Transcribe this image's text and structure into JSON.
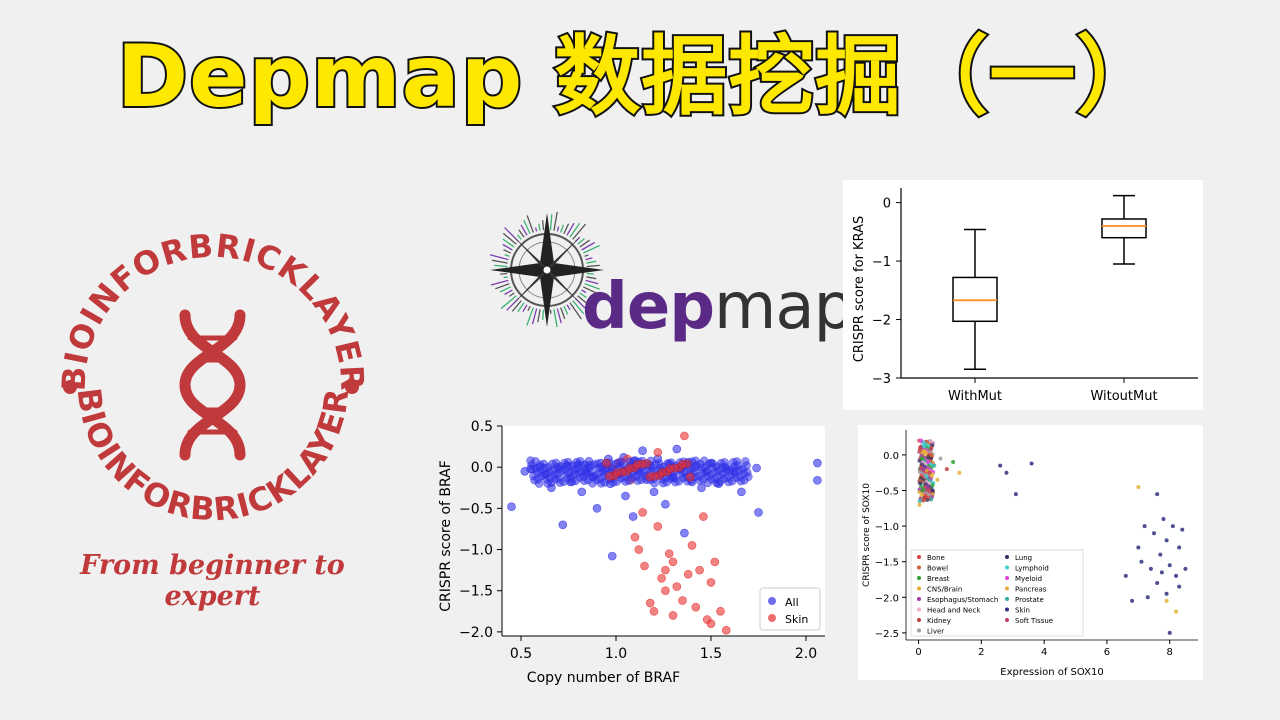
{
  "title": "Depmap 数据挖掘（一）",
  "badge": {
    "top_text": "BIOINFORBRICKLAYER",
    "bottom_text": "BIOINFORBRICKLAYER",
    "tagline": "From beginner to expert",
    "color": "#c0393b"
  },
  "depmap_logo": {
    "part1": "dep",
    "part2": "map",
    "icon": "compass-star-icon"
  },
  "chart_data": [
    {
      "type": "box",
      "ylabel": "CRISPR score for KRAS",
      "categories": [
        "WithMut",
        "WitoutMut"
      ],
      "ylim": [
        -3,
        0.25
      ],
      "yticks": [
        "0",
        "−1",
        "−2",
        "−3"
      ],
      "boxes": [
        {
          "whisker_low": -2.85,
          "q1": -2.03,
          "median": -1.67,
          "q3": -1.28,
          "whisker_high": -0.46
        },
        {
          "whisker_low": -1.05,
          "q1": -0.6,
          "median": -0.4,
          "q3": -0.28,
          "whisker_high": 0.12
        }
      ]
    },
    {
      "type": "scatter",
      "xlabel": "Copy number of BRAF",
      "ylabel": "CRISPR score of BRAF",
      "xlim": [
        0.4,
        2.1
      ],
      "ylim": [
        -2.05,
        0.5
      ],
      "xticks": [
        "0.5",
        "1.0",
        "1.5",
        "2.0"
      ],
      "yticks": [
        "0.5",
        "0.0",
        "−0.5",
        "−1.0",
        "−1.5",
        "−2.0"
      ],
      "legend": {
        "position": "bottom-right",
        "items": [
          "All",
          "Skin"
        ]
      },
      "series": [
        {
          "name": "All",
          "color": "#3030e8",
          "points": [
            [
              0.45,
              -0.48
            ],
            [
              0.52,
              -0.05
            ],
            [
              0.55,
              -0.02
            ],
            [
              0.6,
              0.0
            ],
            [
              0.63,
              -0.08
            ],
            [
              0.66,
              -0.25
            ],
            [
              0.7,
              -0.02
            ],
            [
              0.72,
              -0.7
            ],
            [
              0.74,
              0.02
            ],
            [
              0.76,
              -0.18
            ],
            [
              0.78,
              -0.08
            ],
            [
              0.8,
              0.03
            ],
            [
              0.82,
              -0.3
            ],
            [
              0.84,
              -0.06
            ],
            [
              0.86,
              0.02
            ],
            [
              0.88,
              -0.12
            ],
            [
              0.9,
              -0.5
            ],
            [
              0.92,
              0.05
            ],
            [
              0.94,
              -0.02
            ],
            [
              0.96,
              0.1
            ],
            [
              0.97,
              -0.2
            ],
            [
              0.98,
              -1.08
            ],
            [
              1.0,
              0.04
            ],
            [
              1.02,
              -0.08
            ],
            [
              1.04,
              0.12
            ],
            [
              1.05,
              -0.35
            ],
            [
              1.07,
              0.0
            ],
            [
              1.09,
              -0.6
            ],
            [
              1.1,
              0.08
            ],
            [
              1.12,
              -0.05
            ],
            [
              1.14,
              0.2
            ],
            [
              1.16,
              -0.15
            ],
            [
              1.18,
              0.02
            ],
            [
              1.2,
              -0.3
            ],
            [
              1.22,
              0.1
            ],
            [
              1.24,
              -0.05
            ],
            [
              1.26,
              -0.45
            ],
            [
              1.28,
              0.04
            ],
            [
              1.3,
              -0.12
            ],
            [
              1.32,
              0.22
            ],
            [
              1.34,
              -0.02
            ],
            [
              1.36,
              -0.8
            ],
            [
              1.38,
              0.06
            ],
            [
              1.4,
              -0.18
            ],
            [
              1.42,
              0.0
            ],
            [
              1.45,
              -0.25
            ],
            [
              1.48,
              -0.05
            ],
            [
              1.5,
              0.05
            ],
            [
              1.54,
              -0.2
            ],
            [
              1.58,
              -0.02
            ],
            [
              1.62,
              -0.05
            ],
            [
              1.66,
              -0.3
            ],
            [
              1.74,
              -0.01
            ],
            [
              1.75,
              -0.55
            ],
            [
              2.06,
              0.05
            ],
            [
              2.06,
              -0.16
            ]
          ]
        },
        {
          "name": "Skin",
          "color": "#e83030",
          "points": [
            [
              0.98,
              -0.02
            ],
            [
              1.02,
              0.06
            ],
            [
              1.08,
              -0.15
            ],
            [
              1.1,
              -0.85
            ],
            [
              1.12,
              -1.0
            ],
            [
              1.15,
              -1.2
            ],
            [
              1.18,
              -1.65
            ],
            [
              1.2,
              -1.75
            ],
            [
              1.22,
              -0.72
            ],
            [
              1.24,
              -1.35
            ],
            [
              1.26,
              -1.5
            ],
            [
              1.28,
              -1.05
            ],
            [
              1.3,
              -1.15
            ],
            [
              1.32,
              -1.45
            ],
            [
              1.35,
              -1.62
            ],
            [
              1.38,
              -1.3
            ],
            [
              1.4,
              -0.95
            ],
            [
              1.42,
              -1.7
            ],
            [
              1.44,
              -1.25
            ],
            [
              1.46,
              -0.6
            ],
            [
              1.48,
              -1.85
            ],
            [
              1.5,
              -1.4
            ],
            [
              1.52,
              -1.15
            ],
            [
              1.55,
              -1.75
            ],
            [
              1.58,
              -1.98
            ],
            [
              1.5,
              -1.9
            ],
            [
              1.3,
              -1.8
            ],
            [
              1.26,
              -1.25
            ],
            [
              1.14,
              -0.55
            ],
            [
              1.36,
              0.38
            ],
            [
              1.22,
              0.18
            ],
            [
              1.06,
              0.1
            ]
          ]
        }
      ]
    },
    {
      "type": "scatter",
      "xlabel": "Expression of SOX10",
      "ylabel": "CRISPR score of SOX10",
      "xlim": [
        -0.4,
        8.9
      ],
      "ylim": [
        -2.6,
        0.35
      ],
      "xticks": [
        "0",
        "2",
        "4",
        "6",
        "8"
      ],
      "yticks": [
        "0.0",
        "−0.5",
        "−1.0",
        "−1.5",
        "−2.0",
        "−2.5"
      ],
      "legend": {
        "position": "bottom-left",
        "items": [
          {
            "name": "Bone",
            "color": "#d94040"
          },
          {
            "name": "Bowel",
            "color": "#d06030"
          },
          {
            "name": "Breast",
            "color": "#30a030"
          },
          {
            "name": "CNS/Brain",
            "color": "#e0b030"
          },
          {
            "name": "Esophagus/Stomach",
            "color": "#a040a0"
          },
          {
            "name": "Head and Neck",
            "color": "#f0b0d0"
          },
          {
            "name": "Kidney",
            "color": "#c04040"
          },
          {
            "name": "Liver",
            "color": "#a0a0a0"
          },
          {
            "name": "Lung",
            "color": "#303060"
          },
          {
            "name": "Lymphoid",
            "color": "#40d0d0"
          },
          {
            "name": "Myeloid",
            "color": "#e040e0"
          },
          {
            "name": "Pancreas",
            "color": "#e0b040"
          },
          {
            "name": "Prostate",
            "color": "#30b0a0"
          },
          {
            "name": "Skin",
            "color": "#303080"
          },
          {
            "name": "Soft Tissue",
            "color": "#c04060"
          }
        ]
      },
      "points": [
        {
          "x": 0.05,
          "y": 0.1,
          "c": "#d94040"
        },
        {
          "x": 0.1,
          "y": -0.05,
          "c": "#30a030"
        },
        {
          "x": 0.15,
          "y": -0.2,
          "c": "#a040a0"
        },
        {
          "x": 0.2,
          "y": 0.05,
          "c": "#e0b030"
        },
        {
          "x": 0.25,
          "y": -0.3,
          "c": "#40d0d0"
        },
        {
          "x": 0.3,
          "y": -0.1,
          "c": "#e040e0"
        },
        {
          "x": 0.05,
          "y": -0.4,
          "c": "#303060"
        },
        {
          "x": 0.12,
          "y": -0.5,
          "c": "#30a030"
        },
        {
          "x": 0.35,
          "y": -0.25,
          "c": "#c04060"
        },
        {
          "x": 0.4,
          "y": 0.0,
          "c": "#d06030"
        },
        {
          "x": 0.5,
          "y": -0.15,
          "c": "#30b0a0"
        },
        {
          "x": 0.6,
          "y": -0.35,
          "c": "#e0b040"
        },
        {
          "x": 0.08,
          "y": 0.2,
          "c": "#e040e0"
        },
        {
          "x": 0.22,
          "y": -0.6,
          "c": "#d94040"
        },
        {
          "x": 0.7,
          "y": -0.05,
          "c": "#a0a0a0"
        },
        {
          "x": 0.9,
          "y": -0.2,
          "c": "#c04040"
        },
        {
          "x": 1.3,
          "y": -0.25,
          "c": "#e0b030"
        },
        {
          "x": 1.1,
          "y": -0.1,
          "c": "#30a030"
        },
        {
          "x": 0.03,
          "y": -0.7,
          "c": "#e0b030"
        },
        {
          "x": 0.45,
          "y": -0.5,
          "c": "#303060"
        },
        {
          "x": 0.18,
          "y": 0.12,
          "c": "#40d0d0"
        },
        {
          "x": 0.28,
          "y": -0.45,
          "c": "#a040a0"
        },
        {
          "x": 2.6,
          "y": -0.15,
          "c": "#303080"
        },
        {
          "x": 3.6,
          "y": -0.12,
          "c": "#303080"
        },
        {
          "x": 3.1,
          "y": -0.55,
          "c": "#303080"
        },
        {
          "x": 2.8,
          "y": -0.25,
          "c": "#303080"
        },
        {
          "x": 7.0,
          "y": -1.3,
          "c": "#303080"
        },
        {
          "x": 7.2,
          "y": -1.0,
          "c": "#303080"
        },
        {
          "x": 7.4,
          "y": -1.6,
          "c": "#303080"
        },
        {
          "x": 7.5,
          "y": -1.1,
          "c": "#303080"
        },
        {
          "x": 7.6,
          "y": -1.8,
          "c": "#303080"
        },
        {
          "x": 7.7,
          "y": -1.4,
          "c": "#303080"
        },
        {
          "x": 7.8,
          "y": -0.9,
          "c": "#303080"
        },
        {
          "x": 7.9,
          "y": -1.2,
          "c": "#303080"
        },
        {
          "x": 8.0,
          "y": -1.55,
          "c": "#303080"
        },
        {
          "x": 8.1,
          "y": -1.0,
          "c": "#303080"
        },
        {
          "x": 8.2,
          "y": -1.7,
          "c": "#303080"
        },
        {
          "x": 8.3,
          "y": -1.3,
          "c": "#303080"
        },
        {
          "x": 8.4,
          "y": -1.05,
          "c": "#303080"
        },
        {
          "x": 8.5,
          "y": -1.6,
          "c": "#303080"
        },
        {
          "x": 7.3,
          "y": -2.0,
          "c": "#303080"
        },
        {
          "x": 7.9,
          "y": -1.95,
          "c": "#303080"
        },
        {
          "x": 8.0,
          "y": -2.5,
          "c": "#303080"
        },
        {
          "x": 8.2,
          "y": -2.2,
          "c": "#e0b030"
        },
        {
          "x": 7.9,
          "y": -2.05,
          "c": "#e0b030"
        },
        {
          "x": 7.0,
          "y": -0.45,
          "c": "#e0b030"
        },
        {
          "x": 6.6,
          "y": -1.7,
          "c": "#303080"
        },
        {
          "x": 6.8,
          "y": -2.05,
          "c": "#303080"
        },
        {
          "x": 7.6,
          "y": -0.55,
          "c": "#303080"
        },
        {
          "x": 8.3,
          "y": -1.85,
          "c": "#303080"
        },
        {
          "x": 7.1,
          "y": -1.5,
          "c": "#303080"
        },
        {
          "x": 7.75,
          "y": -1.65,
          "c": "#303080"
        }
      ]
    }
  ]
}
